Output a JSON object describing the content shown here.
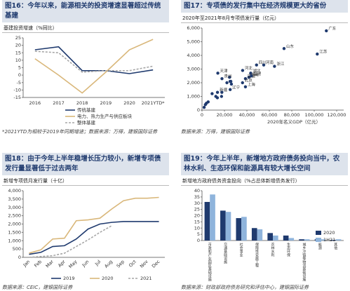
{
  "chart_data": [
    {
      "type": "line",
      "title": "图16：今年以来，能源相关的投资增速显著超过传统基建",
      "subtitle": "基建投资增速（%同比）",
      "categories": [
        "2016",
        "2017",
        "2018",
        "2019",
        "2020",
        "2021YTD*"
      ],
      "series": [
        {
          "name": "传统基建",
          "color": "#1f3a6e",
          "values": [
            17,
            19,
            3,
            3,
            1,
            3.5
          ]
        },
        {
          "name": "电力、热力生产与供应板块",
          "color": "#d9b77a",
          "values": [
            11,
            0,
            -12,
            2,
            17,
            24
          ]
        },
        {
          "name": "整体基建",
          "color": "#a6a6a6",
          "dashed": true,
          "values": [
            16,
            15,
            2,
            3,
            3,
            6
          ]
        }
      ],
      "ylim": [
        -15,
        25
      ],
      "yticks": [
        -15,
        -10,
        -5,
        0,
        5,
        10,
        15,
        20,
        25
      ],
      "legend": "bottom",
      "source": "*2021YTD为相较于2019年同期增速；数据来源：万得，建银国际证券"
    },
    {
      "type": "scatter",
      "title": "图17：专项债的发行集中在经济规模更大的省份",
      "subtitle": "2020年至2021年8月专项债发行量（亿元）",
      "xlabel": "2020年名义GDP（亿元）",
      "color": "#1f3a6e",
      "labels": [
        "广东",
        "山东",
        "江苏",
        "浙江",
        "河南",
        "四川",
        "湖北",
        "河北",
        "湖南",
        "安徽",
        "福建",
        "上海",
        "北京",
        "天津",
        null,
        "贵州",
        null,
        "辽宁",
        "新疆",
        null,
        null,
        null,
        null,
        null,
        null,
        null,
        null,
        null,
        null,
        null,
        null
      ],
      "x": [
        110800,
        73100,
        102700,
        64600,
        55000,
        48600,
        43400,
        36200,
        41800,
        38700,
        43900,
        38700,
        36100,
        14100,
        24500,
        17800,
        25700,
        25100,
        13800,
        22200,
        25000,
        26200,
        17700,
        17400,
        13700,
        12300,
        9000,
        5500,
        3900,
        3000,
        1900
      ],
      "values": [
        5800,
        4500,
        4100,
        3200,
        3300,
        3300,
        2700,
        2900,
        2400,
        2300,
        2500,
        1700,
        2000,
        2700,
        2400,
        2300,
        2100,
        1500,
        1300,
        2000,
        2100,
        1900,
        1300,
        1000,
        900,
        1000,
        1200,
        600,
        500,
        400,
        200
      ],
      "xlim": [
        0,
        120000
      ],
      "xticks": [
        0,
        {
          "value": 20000,
          "label": "20,000"
        },
        {
          "value": 40000,
          "label": "40,000"
        },
        {
          "value": 60000,
          "label": "60,000"
        },
        {
          "value": 80000,
          "label": "80,000"
        },
        {
          "value": 100000,
          "label": "100,000"
        },
        {
          "value": 120000,
          "label": "120,000"
        }
      ],
      "ylim": [
        0,
        6000
      ],
      "yticks": [
        0,
        {
          "value": 1000,
          "label": "1,000"
        },
        {
          "value": 2000,
          "label": "2,000"
        },
        {
          "value": 3000,
          "label": "3,000"
        },
        {
          "value": 4000,
          "label": "4,000"
        },
        {
          "value": 5000,
          "label": "5,000"
        },
        {
          "value": 6000,
          "label": "6,000"
        }
      ],
      "source": "数据来源：万得，建银国际证券"
    },
    {
      "type": "line",
      "title": "图18：由于今年上半年稳增长压力较小，新增专项债发行量显著低于过去两年",
      "subtitle": "新增专项债月发行量（十亿）",
      "categories": [
        "Jan",
        "Feb",
        "Mar",
        "Apr",
        "May",
        "Jun",
        "Jul",
        "Aug",
        "Sep",
        "Oct",
        "Nov",
        "Dec"
      ],
      "series": [
        {
          "name": "2019",
          "color": "#1f3a6e",
          "values": [
            180,
            300,
            650,
            700,
            1100,
            1700,
            2000,
            2100,
            2150,
            2150,
            2150,
            2150
          ]
        },
        {
          "name": "2020",
          "color": "#d9b77a",
          "values": [
            250,
            450,
            1100,
            1150,
            2200,
            2250,
            2350,
            2900,
            3400,
            3550,
            3550,
            3600
          ]
        },
        {
          "name": "2021",
          "color": "#a6a6a6",
          "dashed": true,
          "values": [
            0,
            50,
            100,
            250,
            650,
            1050,
            1500,
            1900,
            null,
            null,
            null,
            null
          ]
        }
      ],
      "ylim": [
        0,
        4000
      ],
      "yticks": [
        0,
        500,
        {
          "value": 1000,
          "label": "1,000"
        },
        {
          "value": 1500,
          "label": "1,500"
        },
        {
          "value": 2000,
          "label": "2,000"
        },
        {
          "value": 2500,
          "label": "2,500"
        },
        {
          "value": 3000,
          "label": "3,000"
        },
        {
          "value": 3500,
          "label": "3,500"
        },
        {
          "value": 4000,
          "label": "4,000"
        }
      ],
      "legend": "bottom",
      "source": "数据来源：CEIC，建银国际证券"
    },
    {
      "type": "bar",
      "title": "图19：今年上半年，新增地方政府债务投向当中，农林水利、生态环保和能源具有较大增长空间",
      "subtitle": "新增地方政府债务资金投向（%占总体新增债务发行）",
      "categories": [
        "市政和产业园区基础设施",
        "交通基础设施",
        "社会事业",
        "保障性安居工程",
        "农林水利",
        "生态环保",
        "城乡冷链等物流基础设施",
        "能源",
        "其他"
      ],
      "series": [
        {
          "name": "2020",
          "color": "#1f3a6e",
          "values": [
            31,
            24,
            18,
            10,
            6,
            4,
            1,
            1,
            0.5
          ]
        },
        {
          "name": "1H21",
          "color": "#8fb4dc",
          "values": [
            37,
            23,
            19,
            9,
            4,
            2,
            1,
            1,
            1
          ]
        }
      ],
      "ylim": [
        0,
        40
      ],
      "yticks": [
        0,
        5,
        10,
        15,
        20,
        25,
        30,
        35,
        40
      ],
      "legend": "upper right",
      "source": "数据来源：财政部政府债务研究和评估中心，建银国际证券"
    }
  ]
}
